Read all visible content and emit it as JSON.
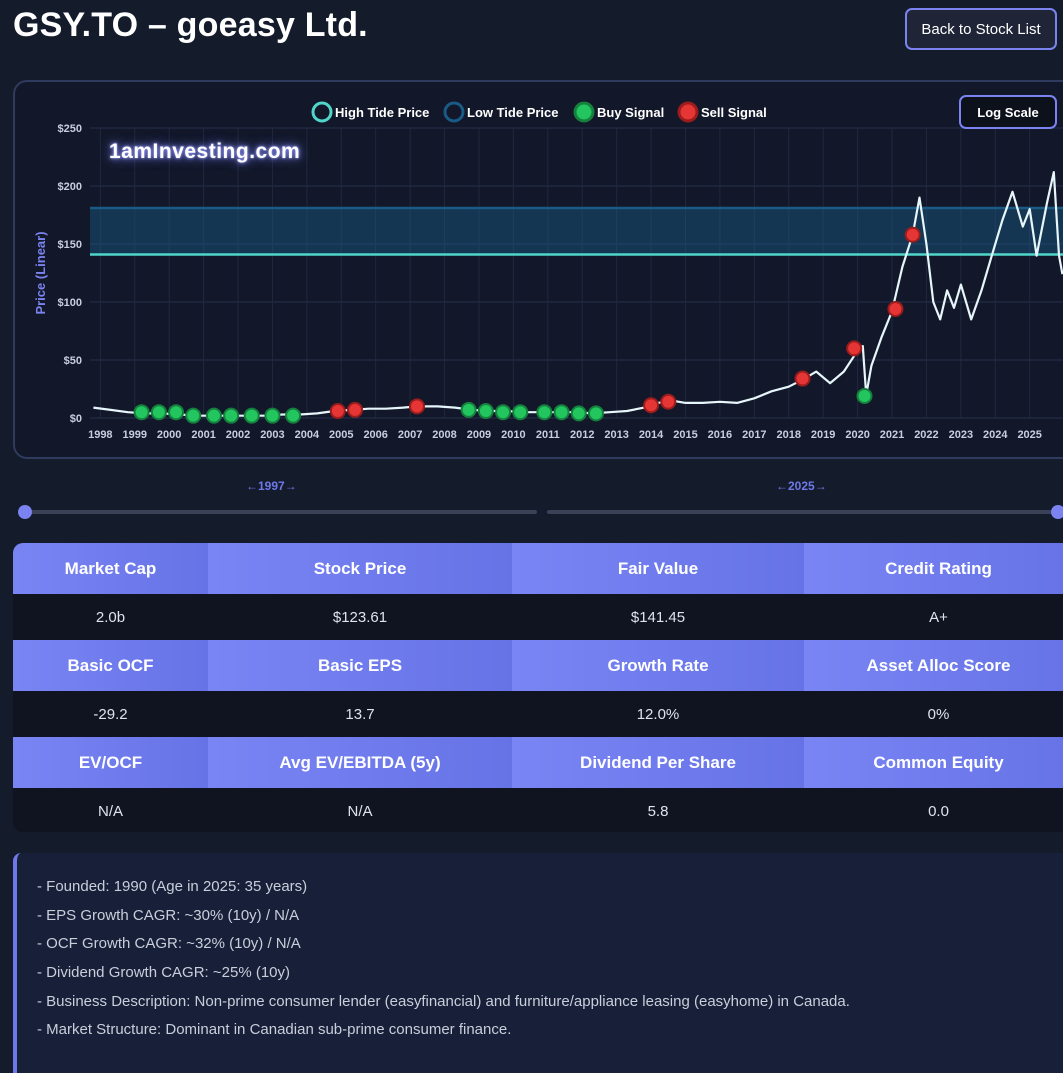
{
  "header": {
    "title": "GSY.TO – goeasy Ltd.",
    "back_label": "Back to Stock List"
  },
  "chart": {
    "log_button_label": "Log Scale",
    "watermark": "1amInvesting.com",
    "colors": {
      "high_tide": "#4fd6c9",
      "low_tide": "#1a5a86",
      "buy": "#22c55e",
      "sell": "#e53535",
      "price_line": "#e6f6fb"
    }
  },
  "chart_data": {
    "type": "line",
    "ylabel": "Price (Linear)",
    "ylim": [
      0,
      250
    ],
    "yticks": [
      0,
      50,
      100,
      150,
      200,
      250
    ],
    "ytick_labels": [
      "$0",
      "$50",
      "$100",
      "$150",
      "$200",
      "$250"
    ],
    "xlim": [
      1997.7,
      2026.2
    ],
    "xticks": [
      1998,
      1999,
      2000,
      2001,
      2002,
      2003,
      2004,
      2005,
      2006,
      2007,
      2008,
      2009,
      2010,
      2011,
      2012,
      2013,
      2014,
      2015,
      2016,
      2017,
      2018,
      2019,
      2020,
      2021,
      2022,
      2023,
      2024,
      2025
    ],
    "grid": true,
    "legend": [
      "High Tide Price",
      "Low Tide Price",
      "Buy Signal",
      "Sell Signal"
    ],
    "legend_position": "top-center",
    "high_tide": 141,
    "low_tide": 181,
    "price_series": [
      [
        1997.8,
        9
      ],
      [
        1998.3,
        7
      ],
      [
        1998.8,
        5
      ],
      [
        1999.3,
        4
      ],
      [
        1999.8,
        4
      ],
      [
        2000.3,
        3
      ],
      [
        2000.8,
        2
      ],
      [
        2001.3,
        2
      ],
      [
        2001.8,
        2
      ],
      [
        2002.3,
        2
      ],
      [
        2002.8,
        2
      ],
      [
        2003.3,
        3
      ],
      [
        2003.8,
        3
      ],
      [
        2004.3,
        4
      ],
      [
        2004.8,
        6
      ],
      [
        2005.3,
        7
      ],
      [
        2005.8,
        8
      ],
      [
        2006.3,
        8
      ],
      [
        2006.8,
        9
      ],
      [
        2007.2,
        10
      ],
      [
        2007.8,
        10
      ],
      [
        2008.3,
        9
      ],
      [
        2008.8,
        7
      ],
      [
        2009.3,
        6
      ],
      [
        2009.8,
        6
      ],
      [
        2010.3,
        5
      ],
      [
        2010.8,
        5
      ],
      [
        2011.3,
        5
      ],
      [
        2011.8,
        5
      ],
      [
        2012.3,
        4
      ],
      [
        2012.8,
        5
      ],
      [
        2013.3,
        6
      ],
      [
        2013.8,
        9
      ],
      [
        2014.2,
        13
      ],
      [
        2014.6,
        15
      ],
      [
        2015.0,
        13
      ],
      [
        2015.5,
        13
      ],
      [
        2016.0,
        14
      ],
      [
        2016.5,
        13
      ],
      [
        2017.0,
        17
      ],
      [
        2017.5,
        23
      ],
      [
        2018.0,
        27
      ],
      [
        2018.4,
        33
      ],
      [
        2018.8,
        40
      ],
      [
        2019.2,
        30
      ],
      [
        2019.6,
        40
      ],
      [
        2020.0,
        58
      ],
      [
        2020.15,
        62
      ],
      [
        2020.25,
        20
      ],
      [
        2020.4,
        45
      ],
      [
        2020.7,
        70
      ],
      [
        2021.0,
        92
      ],
      [
        2021.3,
        130
      ],
      [
        2021.6,
        158
      ],
      [
        2021.8,
        190
      ],
      [
        2022.0,
        150
      ],
      [
        2022.2,
        100
      ],
      [
        2022.4,
        85
      ],
      [
        2022.6,
        110
      ],
      [
        2022.8,
        95
      ],
      [
        2023.0,
        115
      ],
      [
        2023.3,
        85
      ],
      [
        2023.6,
        110
      ],
      [
        2023.9,
        140
      ],
      [
        2024.2,
        170
      ],
      [
        2024.5,
        195
      ],
      [
        2024.8,
        165
      ],
      [
        2025.0,
        180
      ],
      [
        2025.2,
        140
      ],
      [
        2025.5,
        185
      ],
      [
        2025.7,
        212
      ],
      [
        2025.85,
        140
      ],
      [
        2025.95,
        124
      ]
    ],
    "buy_signals": [
      [
        1999.2,
        5
      ],
      [
        1999.7,
        5
      ],
      [
        2000.2,
        5
      ],
      [
        2000.7,
        2
      ],
      [
        2001.3,
        2
      ],
      [
        2001.8,
        2
      ],
      [
        2002.4,
        2
      ],
      [
        2003.0,
        2
      ],
      [
        2003.6,
        2
      ],
      [
        2008.7,
        7
      ],
      [
        2009.2,
        6
      ],
      [
        2009.7,
        5
      ],
      [
        2010.2,
        5
      ],
      [
        2010.9,
        5
      ],
      [
        2011.4,
        5
      ],
      [
        2011.9,
        4
      ],
      [
        2012.4,
        4
      ],
      [
        2020.2,
        19
      ]
    ],
    "sell_signals": [
      [
        2004.9,
        6
      ],
      [
        2005.4,
        7
      ],
      [
        2007.2,
        10
      ],
      [
        2014.0,
        11
      ],
      [
        2014.5,
        14
      ],
      [
        2018.4,
        34
      ],
      [
        2019.9,
        60
      ],
      [
        2021.1,
        94
      ],
      [
        2021.6,
        158
      ]
    ]
  },
  "range": {
    "start_label": "←1997→",
    "end_label": "←2025→"
  },
  "metrics": {
    "rows": [
      {
        "headers": [
          "Market Cap",
          "Stock Price",
          "Fair Value",
          "Credit Rating"
        ],
        "values": [
          "2.0b",
          "$123.61",
          "$141.45",
          "A+"
        ]
      },
      {
        "headers": [
          "Basic OCF",
          "Basic EPS",
          "Growth Rate",
          "Asset Alloc Score"
        ],
        "values": [
          "-29.2",
          "13.7",
          "12.0%",
          "0%"
        ]
      },
      {
        "headers": [
          "EV/OCF",
          "Avg EV/EBITDA (5y)",
          "Dividend Per Share",
          "Common Equity"
        ],
        "values": [
          "N/A",
          "N/A",
          "5.8",
          "0.0"
        ]
      }
    ]
  },
  "notes": [
    "- Founded: 1990 (Age in 2025: 35 years)",
    "- EPS Growth CAGR: ~30% (10y) / N/A",
    "- OCF Growth CAGR: ~32% (10y) / N/A",
    "- Dividend Growth CAGR: ~25% (10y)",
    "- Business Description: Non-prime consumer lender (easyfinancial) and furniture/appliance leasing (easyhome) in Canada.",
    "- Market Structure: Dominant in Canadian sub-prime consumer finance."
  ]
}
